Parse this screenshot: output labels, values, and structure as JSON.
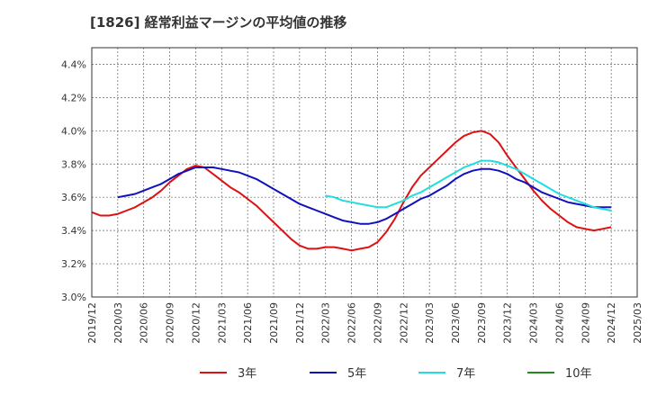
{
  "chart_data": {
    "type": "line",
    "title": "[1826]  経常利益マージンの平均値の推移",
    "xlabel": "",
    "ylabel": "",
    "ylim": [
      3.0,
      4.5
    ],
    "y_ticks": [
      "3.0%",
      "3.2%",
      "3.4%",
      "3.6%",
      "3.8%",
      "4.0%",
      "4.2%",
      "4.4%"
    ],
    "x_ticks": [
      "2019/12",
      "2020/03",
      "2020/06",
      "2020/09",
      "2020/12",
      "2021/03",
      "2021/06",
      "2021/09",
      "2021/12",
      "2022/03",
      "2022/06",
      "2022/09",
      "2022/12",
      "2023/03",
      "2023/06",
      "2023/09",
      "2023/12",
      "2024/03",
      "2024/06",
      "2024/09",
      "2024/12",
      "2025/03"
    ],
    "grid": true,
    "legend_position": "bottom",
    "series": [
      {
        "name": "3年",
        "color": "#dd1111",
        "points": [
          [
            "2019/12",
            3.51
          ],
          [
            "2020/01",
            3.49
          ],
          [
            "2020/02",
            3.49
          ],
          [
            "2020/03",
            3.5
          ],
          [
            "2020/04",
            3.52
          ],
          [
            "2020/05",
            3.54
          ],
          [
            "2020/06",
            3.57
          ],
          [
            "2020/07",
            3.6
          ],
          [
            "2020/08",
            3.64
          ],
          [
            "2020/09",
            3.69
          ],
          [
            "2020/10",
            3.73
          ],
          [
            "2020/11",
            3.77
          ],
          [
            "2020/12",
            3.79
          ],
          [
            "2021/01",
            3.78
          ],
          [
            "2021/02",
            3.74
          ],
          [
            "2021/03",
            3.7
          ],
          [
            "2021/04",
            3.66
          ],
          [
            "2021/05",
            3.63
          ],
          [
            "2021/06",
            3.59
          ],
          [
            "2021/07",
            3.55
          ],
          [
            "2021/08",
            3.5
          ],
          [
            "2021/09",
            3.45
          ],
          [
            "2021/10",
            3.4
          ],
          [
            "2021/11",
            3.35
          ],
          [
            "2021/12",
            3.31
          ],
          [
            "2022/01",
            3.29
          ],
          [
            "2022/02",
            3.29
          ],
          [
            "2022/03",
            3.3
          ],
          [
            "2022/04",
            3.3
          ],
          [
            "2022/05",
            3.29
          ],
          [
            "2022/06",
            3.28
          ],
          [
            "2022/07",
            3.29
          ],
          [
            "2022/08",
            3.3
          ],
          [
            "2022/09",
            3.33
          ],
          [
            "2022/10",
            3.39
          ],
          [
            "2022/11",
            3.47
          ],
          [
            "2022/12",
            3.57
          ],
          [
            "2023/01",
            3.66
          ],
          [
            "2023/02",
            3.73
          ],
          [
            "2023/03",
            3.78
          ],
          [
            "2023/04",
            3.83
          ],
          [
            "2023/05",
            3.88
          ],
          [
            "2023/06",
            3.93
          ],
          [
            "2023/07",
            3.97
          ],
          [
            "2023/08",
            3.99
          ],
          [
            "2023/09",
            4.0
          ],
          [
            "2023/10",
            3.98
          ],
          [
            "2023/11",
            3.93
          ],
          [
            "2023/12",
            3.85
          ],
          [
            "2024/01",
            3.78
          ],
          [
            "2024/02",
            3.71
          ],
          [
            "2024/03",
            3.64
          ],
          [
            "2024/04",
            3.58
          ],
          [
            "2024/05",
            3.53
          ],
          [
            "2024/06",
            3.49
          ],
          [
            "2024/07",
            3.45
          ],
          [
            "2024/08",
            3.42
          ],
          [
            "2024/09",
            3.41
          ],
          [
            "2024/10",
            3.4
          ],
          [
            "2024/11",
            3.41
          ],
          [
            "2024/12",
            3.42
          ]
        ]
      },
      {
        "name": "5年",
        "color": "#1111bb",
        "points": [
          [
            "2020/03",
            3.6
          ],
          [
            "2020/04",
            3.61
          ],
          [
            "2020/05",
            3.62
          ],
          [
            "2020/06",
            3.64
          ],
          [
            "2020/07",
            3.66
          ],
          [
            "2020/08",
            3.68
          ],
          [
            "2020/09",
            3.71
          ],
          [
            "2020/10",
            3.74
          ],
          [
            "2020/11",
            3.76
          ],
          [
            "2020/12",
            3.78
          ],
          [
            "2021/01",
            3.78
          ],
          [
            "2021/02",
            3.78
          ],
          [
            "2021/03",
            3.77
          ],
          [
            "2021/04",
            3.76
          ],
          [
            "2021/05",
            3.75
          ],
          [
            "2021/06",
            3.73
          ],
          [
            "2021/07",
            3.71
          ],
          [
            "2021/08",
            3.68
          ],
          [
            "2021/09",
            3.65
          ],
          [
            "2021/10",
            3.62
          ],
          [
            "2021/11",
            3.59
          ],
          [
            "2021/12",
            3.56
          ],
          [
            "2022/01",
            3.54
          ],
          [
            "2022/02",
            3.52
          ],
          [
            "2022/03",
            3.5
          ],
          [
            "2022/04",
            3.48
          ],
          [
            "2022/05",
            3.46
          ],
          [
            "2022/06",
            3.45
          ],
          [
            "2022/07",
            3.44
          ],
          [
            "2022/08",
            3.44
          ],
          [
            "2022/09",
            3.45
          ],
          [
            "2022/10",
            3.47
          ],
          [
            "2022/11",
            3.5
          ],
          [
            "2022/12",
            3.53
          ],
          [
            "2023/01",
            3.56
          ],
          [
            "2023/02",
            3.59
          ],
          [
            "2023/03",
            3.61
          ],
          [
            "2023/04",
            3.64
          ],
          [
            "2023/05",
            3.67
          ],
          [
            "2023/06",
            3.71
          ],
          [
            "2023/07",
            3.74
          ],
          [
            "2023/08",
            3.76
          ],
          [
            "2023/09",
            3.77
          ],
          [
            "2023/10",
            3.77
          ],
          [
            "2023/11",
            3.76
          ],
          [
            "2023/12",
            3.74
          ],
          [
            "2024/01",
            3.71
          ],
          [
            "2024/02",
            3.69
          ],
          [
            "2024/03",
            3.66
          ],
          [
            "2024/04",
            3.63
          ],
          [
            "2024/05",
            3.61
          ],
          [
            "2024/06",
            3.59
          ],
          [
            "2024/07",
            3.57
          ],
          [
            "2024/08",
            3.56
          ],
          [
            "2024/09",
            3.55
          ],
          [
            "2024/10",
            3.54
          ],
          [
            "2024/11",
            3.54
          ],
          [
            "2024/12",
            3.54
          ]
        ]
      },
      {
        "name": "7年",
        "color": "#22dddd",
        "points": [
          [
            "2022/03",
            3.61
          ],
          [
            "2022/04",
            3.6
          ],
          [
            "2022/05",
            3.58
          ],
          [
            "2022/06",
            3.57
          ],
          [
            "2022/07",
            3.56
          ],
          [
            "2022/08",
            3.55
          ],
          [
            "2022/09",
            3.54
          ],
          [
            "2022/10",
            3.54
          ],
          [
            "2022/11",
            3.56
          ],
          [
            "2022/12",
            3.58
          ],
          [
            "2023/01",
            3.61
          ],
          [
            "2023/02",
            3.63
          ],
          [
            "2023/03",
            3.66
          ],
          [
            "2023/04",
            3.69
          ],
          [
            "2023/05",
            3.72
          ],
          [
            "2023/06",
            3.75
          ],
          [
            "2023/07",
            3.78
          ],
          [
            "2023/08",
            3.8
          ],
          [
            "2023/09",
            3.82
          ],
          [
            "2023/10",
            3.82
          ],
          [
            "2023/11",
            3.81
          ],
          [
            "2023/12",
            3.79
          ],
          [
            "2024/01",
            3.77
          ],
          [
            "2024/02",
            3.74
          ],
          [
            "2024/03",
            3.71
          ],
          [
            "2024/04",
            3.68
          ],
          [
            "2024/05",
            3.65
          ],
          [
            "2024/06",
            3.62
          ],
          [
            "2024/07",
            3.6
          ],
          [
            "2024/08",
            3.58
          ],
          [
            "2024/09",
            3.56
          ],
          [
            "2024/10",
            3.54
          ],
          [
            "2024/11",
            3.53
          ],
          [
            "2024/12",
            3.52
          ]
        ]
      },
      {
        "name": "10年",
        "color": "#228822",
        "points": []
      }
    ]
  }
}
